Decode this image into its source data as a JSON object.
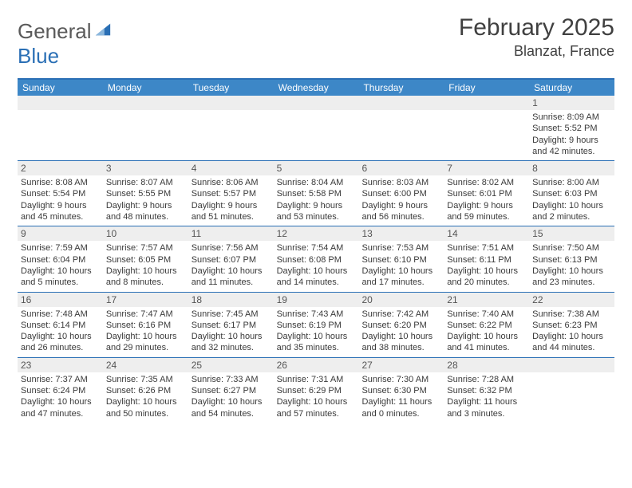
{
  "brand": {
    "word1": "General",
    "word2": "Blue"
  },
  "title": "February 2025",
  "location": "Blanzat, France",
  "colors": {
    "header_bar": "#3d87c7",
    "accent_line": "#2a6fb5",
    "daynum_bg": "#eeeeee",
    "text": "#3a3a3a",
    "title_text": "#404040"
  },
  "day_headers": [
    "Sunday",
    "Monday",
    "Tuesday",
    "Wednesday",
    "Thursday",
    "Friday",
    "Saturday"
  ],
  "weeks": [
    [
      null,
      null,
      null,
      null,
      null,
      null,
      {
        "n": "1",
        "sunrise": "8:09 AM",
        "sunset": "5:52 PM",
        "daylight": "9 hours and 42 minutes."
      }
    ],
    [
      {
        "n": "2",
        "sunrise": "8:08 AM",
        "sunset": "5:54 PM",
        "daylight": "9 hours and 45 minutes."
      },
      {
        "n": "3",
        "sunrise": "8:07 AM",
        "sunset": "5:55 PM",
        "daylight": "9 hours and 48 minutes."
      },
      {
        "n": "4",
        "sunrise": "8:06 AM",
        "sunset": "5:57 PM",
        "daylight": "9 hours and 51 minutes."
      },
      {
        "n": "5",
        "sunrise": "8:04 AM",
        "sunset": "5:58 PM",
        "daylight": "9 hours and 53 minutes."
      },
      {
        "n": "6",
        "sunrise": "8:03 AM",
        "sunset": "6:00 PM",
        "daylight": "9 hours and 56 minutes."
      },
      {
        "n": "7",
        "sunrise": "8:02 AM",
        "sunset": "6:01 PM",
        "daylight": "9 hours and 59 minutes."
      },
      {
        "n": "8",
        "sunrise": "8:00 AM",
        "sunset": "6:03 PM",
        "daylight": "10 hours and 2 minutes."
      }
    ],
    [
      {
        "n": "9",
        "sunrise": "7:59 AM",
        "sunset": "6:04 PM",
        "daylight": "10 hours and 5 minutes."
      },
      {
        "n": "10",
        "sunrise": "7:57 AM",
        "sunset": "6:05 PM",
        "daylight": "10 hours and 8 minutes."
      },
      {
        "n": "11",
        "sunrise": "7:56 AM",
        "sunset": "6:07 PM",
        "daylight": "10 hours and 11 minutes."
      },
      {
        "n": "12",
        "sunrise": "7:54 AM",
        "sunset": "6:08 PM",
        "daylight": "10 hours and 14 minutes."
      },
      {
        "n": "13",
        "sunrise": "7:53 AM",
        "sunset": "6:10 PM",
        "daylight": "10 hours and 17 minutes."
      },
      {
        "n": "14",
        "sunrise": "7:51 AM",
        "sunset": "6:11 PM",
        "daylight": "10 hours and 20 minutes."
      },
      {
        "n": "15",
        "sunrise": "7:50 AM",
        "sunset": "6:13 PM",
        "daylight": "10 hours and 23 minutes."
      }
    ],
    [
      {
        "n": "16",
        "sunrise": "7:48 AM",
        "sunset": "6:14 PM",
        "daylight": "10 hours and 26 minutes."
      },
      {
        "n": "17",
        "sunrise": "7:47 AM",
        "sunset": "6:16 PM",
        "daylight": "10 hours and 29 minutes."
      },
      {
        "n": "18",
        "sunrise": "7:45 AM",
        "sunset": "6:17 PM",
        "daylight": "10 hours and 32 minutes."
      },
      {
        "n": "19",
        "sunrise": "7:43 AM",
        "sunset": "6:19 PM",
        "daylight": "10 hours and 35 minutes."
      },
      {
        "n": "20",
        "sunrise": "7:42 AM",
        "sunset": "6:20 PM",
        "daylight": "10 hours and 38 minutes."
      },
      {
        "n": "21",
        "sunrise": "7:40 AM",
        "sunset": "6:22 PM",
        "daylight": "10 hours and 41 minutes."
      },
      {
        "n": "22",
        "sunrise": "7:38 AM",
        "sunset": "6:23 PM",
        "daylight": "10 hours and 44 minutes."
      }
    ],
    [
      {
        "n": "23",
        "sunrise": "7:37 AM",
        "sunset": "6:24 PM",
        "daylight": "10 hours and 47 minutes."
      },
      {
        "n": "24",
        "sunrise": "7:35 AM",
        "sunset": "6:26 PM",
        "daylight": "10 hours and 50 minutes."
      },
      {
        "n": "25",
        "sunrise": "7:33 AM",
        "sunset": "6:27 PM",
        "daylight": "10 hours and 54 minutes."
      },
      {
        "n": "26",
        "sunrise": "7:31 AM",
        "sunset": "6:29 PM",
        "daylight": "10 hours and 57 minutes."
      },
      {
        "n": "27",
        "sunrise": "7:30 AM",
        "sunset": "6:30 PM",
        "daylight": "11 hours and 0 minutes."
      },
      {
        "n": "28",
        "sunrise": "7:28 AM",
        "sunset": "6:32 PM",
        "daylight": "11 hours and 3 minutes."
      },
      null
    ]
  ],
  "labels": {
    "sunrise": "Sunrise:",
    "sunset": "Sunset:",
    "daylight": "Daylight:"
  }
}
